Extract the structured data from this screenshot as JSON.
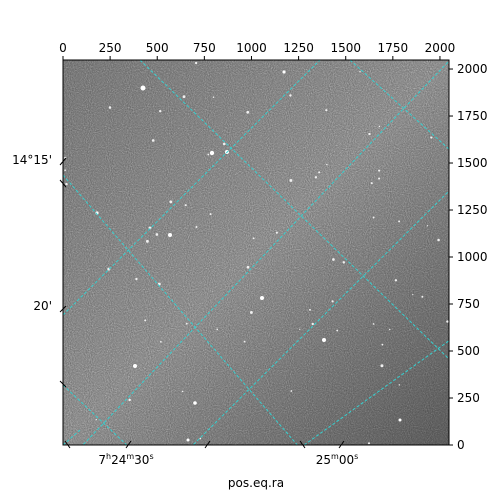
{
  "figure": {
    "xlabel": "pos.eq.ra",
    "top_ticks": [
      "0",
      "250",
      "500",
      "750",
      "1000",
      "1250",
      "1500",
      "1750",
      "2000"
    ],
    "right_ticks": [
      "0",
      "250",
      "500",
      "750",
      "1000",
      "1250",
      "1500",
      "1750",
      "2000"
    ],
    "left_labels": [
      "14°15'",
      "20'"
    ],
    "bottom_labels": [
      {
        "main": "7",
        "sup1": "h",
        "mid": "24",
        "sup2": "m",
        "end": "30",
        "sup3": "s"
      },
      {
        "main": "25",
        "sup1": "m",
        "mid": "00",
        "sup2": "s",
        "end": "",
        "sup3": ""
      }
    ],
    "grid_color": "#36d0d0",
    "image_tone": "grayscale star field"
  }
}
